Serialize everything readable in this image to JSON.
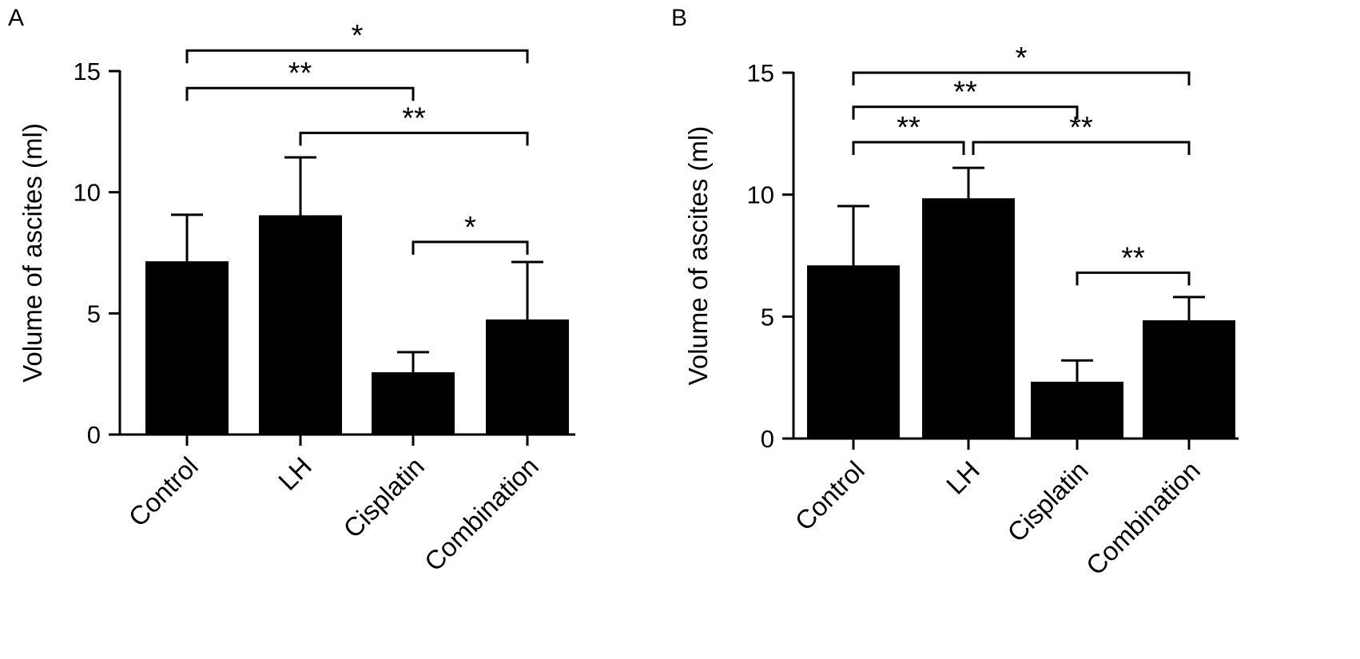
{
  "chart_data": [
    {
      "type": "bar",
      "panel_label": "A",
      "title": "",
      "xlabel": "",
      "ylabel": "Volume of ascites (ml)",
      "ylim": [
        0,
        15
      ],
      "yticks": [
        "0",
        "5",
        "10",
        "15"
      ],
      "categories": [
        "Control",
        "LH",
        "Cisplatin",
        "Combination"
      ],
      "values": [
        7.15,
        9.05,
        2.57,
        4.75
      ],
      "error_upper": [
        9.07,
        11.44,
        3.4,
        7.12
      ],
      "significance": [
        {
          "from": 0,
          "to": 3,
          "label": "*",
          "level": 15.85
        },
        {
          "from": 0,
          "to": 2,
          "label": "**",
          "level": 14.3
        },
        {
          "from": 1,
          "to": 3,
          "label": "**",
          "level": 12.45
        },
        {
          "from": 2,
          "to": 3,
          "label": "*",
          "level": 7.95
        }
      ]
    },
    {
      "type": "bar",
      "panel_label": "B",
      "title": "",
      "xlabel": "",
      "ylabel": "Volume of ascites (ml)",
      "ylim": [
        0,
        15
      ],
      "yticks": [
        "0",
        "5",
        "10",
        "15"
      ],
      "categories": [
        "Control",
        "LH",
        "Cisplatin",
        "Combination"
      ],
      "values": [
        7.1,
        9.85,
        2.33,
        4.85
      ],
      "error_upper": [
        9.53,
        11.1,
        3.2,
        5.8
      ],
      "significance": [
        {
          "from": 0,
          "to": 3,
          "label": "*",
          "level": 15.0
        },
        {
          "from": 0,
          "to": 2,
          "label": "**",
          "level": 13.6
        },
        {
          "from": 0,
          "to": 1,
          "label": "**",
          "level": 12.15
        },
        {
          "from": 1,
          "to": 3,
          "label": "**",
          "level": 12.15
        },
        {
          "from": 2,
          "to": 3,
          "label": "**",
          "level": 6.8
        }
      ]
    }
  ]
}
